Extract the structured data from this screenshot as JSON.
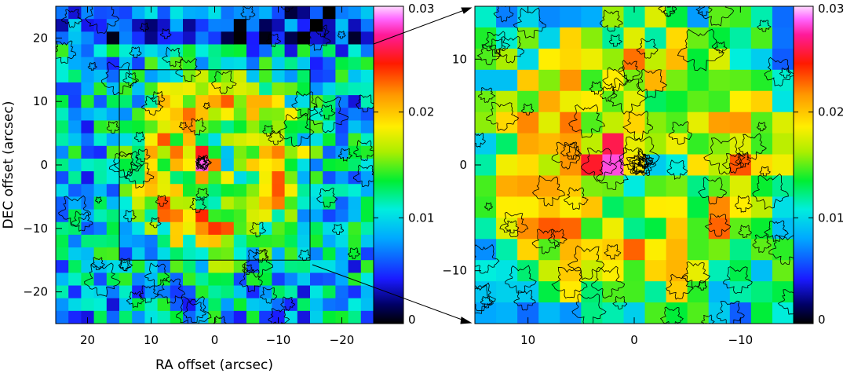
{
  "chart_data": [
    {
      "type": "heatmap",
      "panel": "left",
      "xlabel": "RA offset (arcsec)",
      "ylabel": "DEC offset (arcsec)",
      "xlim": [
        25,
        -25
      ],
      "ylim": [
        -25,
        25
      ],
      "xticks": [
        20,
        10,
        0,
        -10,
        -20
      ],
      "xtick_labels": [
        "20",
        "10",
        "0",
        "−10",
        "−20"
      ],
      "yticks": [
        20,
        10,
        0,
        -10,
        -20
      ],
      "ytick_labels": [
        "20",
        "10",
        "0",
        "−10",
        "−20"
      ],
      "colorbar": {
        "range": [
          0,
          0.03
        ],
        "ticks": [
          0,
          0.01,
          0.02,
          0.03
        ],
        "tick_labels": [
          "0",
          "0.01",
          "0.02",
          "0.03"
        ]
      },
      "zoom_box": {
        "ra": [
          15,
          -15
        ],
        "dec": [
          -15,
          15
        ]
      },
      "contours": true
    },
    {
      "type": "heatmap",
      "panel": "right",
      "xlabel": "",
      "ylabel": "",
      "xlim": [
        15,
        -15
      ],
      "ylim": [
        -15,
        15
      ],
      "xticks": [
        10,
        0,
        -10
      ],
      "xtick_labels": [
        "10",
        "0",
        "−10"
      ],
      "yticks": [
        10,
        0,
        -10
      ],
      "ytick_labels": [
        "10",
        "0",
        "−10"
      ],
      "colorbar": {
        "range": [
          0,
          0.03
        ],
        "ticks": [
          0,
          0.01,
          0.02,
          0.03
        ],
        "tick_labels": [
          "0",
          "0.01",
          "0.02",
          "0.03"
        ]
      },
      "contours": true
    }
  ]
}
